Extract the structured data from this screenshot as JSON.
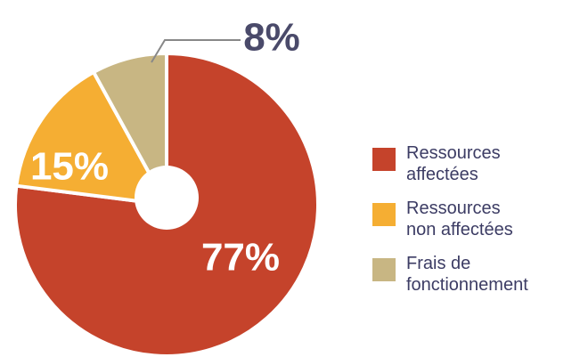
{
  "chart_data": {
    "type": "donut",
    "series": [
      {
        "name": "Ressources\naffectées",
        "color": "#c5432b"
      },
      {
        "name": "Ressources\nnon affectées",
        "color": "#f5ae33"
      },
      {
        "name": "Frais de\nfonctionnement",
        "color": "#c8b683"
      }
    ],
    "values": [
      77,
      15,
      8
    ],
    "value_labels": [
      "77%",
      "15%",
      "8%"
    ]
  }
}
